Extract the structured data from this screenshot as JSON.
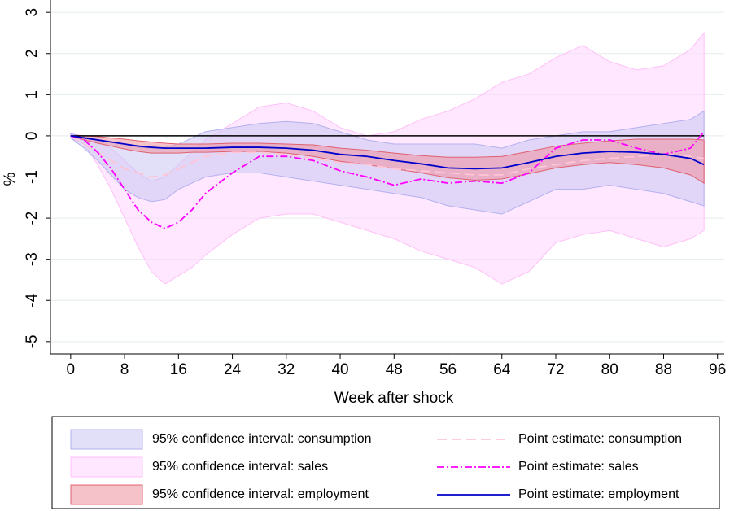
{
  "chart_data": {
    "type": "line_band",
    "x_label": "Week after shock",
    "y_label": "%",
    "x": [
      0,
      2,
      4,
      6,
      8,
      10,
      12,
      14,
      16,
      18,
      20,
      24,
      28,
      32,
      36,
      40,
      44,
      48,
      52,
      56,
      60,
      64,
      68,
      72,
      76,
      80,
      84,
      88,
      92,
      94
    ],
    "xlim": [
      -3,
      97
    ],
    "xticks": [
      0,
      8,
      16,
      24,
      32,
      40,
      48,
      56,
      64,
      72,
      80,
      88,
      96
    ],
    "ylim": [
      -5.3,
      3.3
    ],
    "yticks": [
      -5,
      -4,
      -3,
      -2,
      -1,
      0,
      1,
      2,
      3
    ],
    "grid": true,
    "refline": 0,
    "bands": [
      {
        "name": "95% confidence interval: sales",
        "color": "#ffd6ff",
        "edge": "#ffbff7",
        "upper": [
          0.05,
          0,
          -0.1,
          -0.3,
          -0.6,
          -0.9,
          -1.1,
          -1.0,
          -0.7,
          -0.4,
          -0.1,
          0.3,
          0.7,
          0.8,
          0.6,
          0.2,
          0.0,
          0.1,
          0.4,
          0.6,
          0.9,
          1.3,
          1.5,
          1.9,
          2.2,
          1.8,
          1.6,
          1.7,
          2.1,
          2.5
        ],
        "lower": [
          -0.05,
          -0.2,
          -0.7,
          -1.3,
          -2.0,
          -2.7,
          -3.3,
          -3.6,
          -3.4,
          -3.2,
          -2.9,
          -2.4,
          -2.0,
          -1.9,
          -1.9,
          -2.1,
          -2.3,
          -2.5,
          -2.8,
          -3.0,
          -3.2,
          -3.6,
          -3.3,
          -2.6,
          -2.4,
          -2.3,
          -2.5,
          -2.7,
          -2.5,
          -2.3
        ]
      },
      {
        "name": "95% confidence interval: consumption",
        "color": "#c9c6f3",
        "edge": "#b3b0ee",
        "upper": [
          0.05,
          -0.02,
          -0.08,
          -0.15,
          -0.2,
          -0.28,
          -0.3,
          -0.28,
          -0.2,
          -0.05,
          0.1,
          0.2,
          0.3,
          0.35,
          0.3,
          0.1,
          -0.1,
          -0.2,
          -0.2,
          -0.2,
          -0.2,
          -0.3,
          -0.1,
          0,
          0.1,
          0.1,
          0.2,
          0.3,
          0.4,
          0.6
        ],
        "lower": [
          -0.05,
          -0.3,
          -0.6,
          -0.95,
          -1.3,
          -1.5,
          -1.6,
          -1.55,
          -1.3,
          -1.15,
          -1.0,
          -0.9,
          -0.9,
          -1.0,
          -1.1,
          -1.2,
          -1.3,
          -1.4,
          -1.5,
          -1.7,
          -1.8,
          -1.9,
          -1.6,
          -1.3,
          -1.3,
          -1.2,
          -1.3,
          -1.4,
          -1.6,
          -1.7
        ]
      },
      {
        "name": "95% confidence interval: employment",
        "color": "#ef8f9e",
        "edge": "#e0606f",
        "upper": [
          0,
          0,
          -0.02,
          -0.05,
          -0.08,
          -0.12,
          -0.15,
          -0.18,
          -0.2,
          -0.2,
          -0.2,
          -0.18,
          -0.18,
          -0.2,
          -0.22,
          -0.3,
          -0.35,
          -0.42,
          -0.48,
          -0.52,
          -0.52,
          -0.5,
          -0.38,
          -0.25,
          -0.18,
          -0.12,
          -0.08,
          -0.08,
          -0.08,
          -0.1
        ],
        "lower": [
          0,
          -0.1,
          -0.18,
          -0.25,
          -0.32,
          -0.38,
          -0.42,
          -0.42,
          -0.42,
          -0.4,
          -0.4,
          -0.38,
          -0.38,
          -0.42,
          -0.5,
          -0.62,
          -0.7,
          -0.8,
          -0.9,
          -1.02,
          -1.08,
          -1.05,
          -0.92,
          -0.78,
          -0.7,
          -0.65,
          -0.7,
          -0.78,
          -0.95,
          -1.15
        ]
      }
    ],
    "series": [
      {
        "name": "Point estimate: consumption",
        "color": "#ffc4d6",
        "dash": "12 6",
        "values": [
          0,
          -0.2,
          -0.4,
          -0.6,
          -0.8,
          -0.9,
          -1.0,
          -0.95,
          -0.8,
          -0.65,
          -0.5,
          -0.4,
          -0.4,
          -0.45,
          -0.55,
          -0.65,
          -0.7,
          -0.8,
          -0.85,
          -0.9,
          -0.95,
          -0.95,
          -0.8,
          -0.7,
          -0.6,
          -0.55,
          -0.5,
          -0.45,
          -0.5,
          -0.55
        ]
      },
      {
        "name": "Point estimate: sales",
        "color": "#ff00ff",
        "dash": "9 3 2 3",
        "values": [
          0,
          -0.1,
          -0.4,
          -0.8,
          -1.3,
          -1.8,
          -2.1,
          -2.25,
          -2.1,
          -1.8,
          -1.4,
          -0.9,
          -0.5,
          -0.5,
          -0.6,
          -0.85,
          -1.0,
          -1.2,
          -1.05,
          -1.15,
          -1.1,
          -1.15,
          -0.9,
          -0.3,
          -0.1,
          -0.1,
          -0.3,
          -0.45,
          -0.3,
          0.1
        ]
      },
      {
        "name": "Point estimate: employment",
        "color": "#0000cc",
        "dash": "none",
        "values": [
          0,
          -0.05,
          -0.1,
          -0.15,
          -0.2,
          -0.25,
          -0.28,
          -0.3,
          -0.3,
          -0.3,
          -0.3,
          -0.28,
          -0.28,
          -0.3,
          -0.35,
          -0.45,
          -0.5,
          -0.6,
          -0.68,
          -0.78,
          -0.8,
          -0.78,
          -0.65,
          -0.5,
          -0.42,
          -0.38,
          -0.4,
          -0.45,
          -0.55,
          -0.7
        ]
      }
    ]
  }
}
